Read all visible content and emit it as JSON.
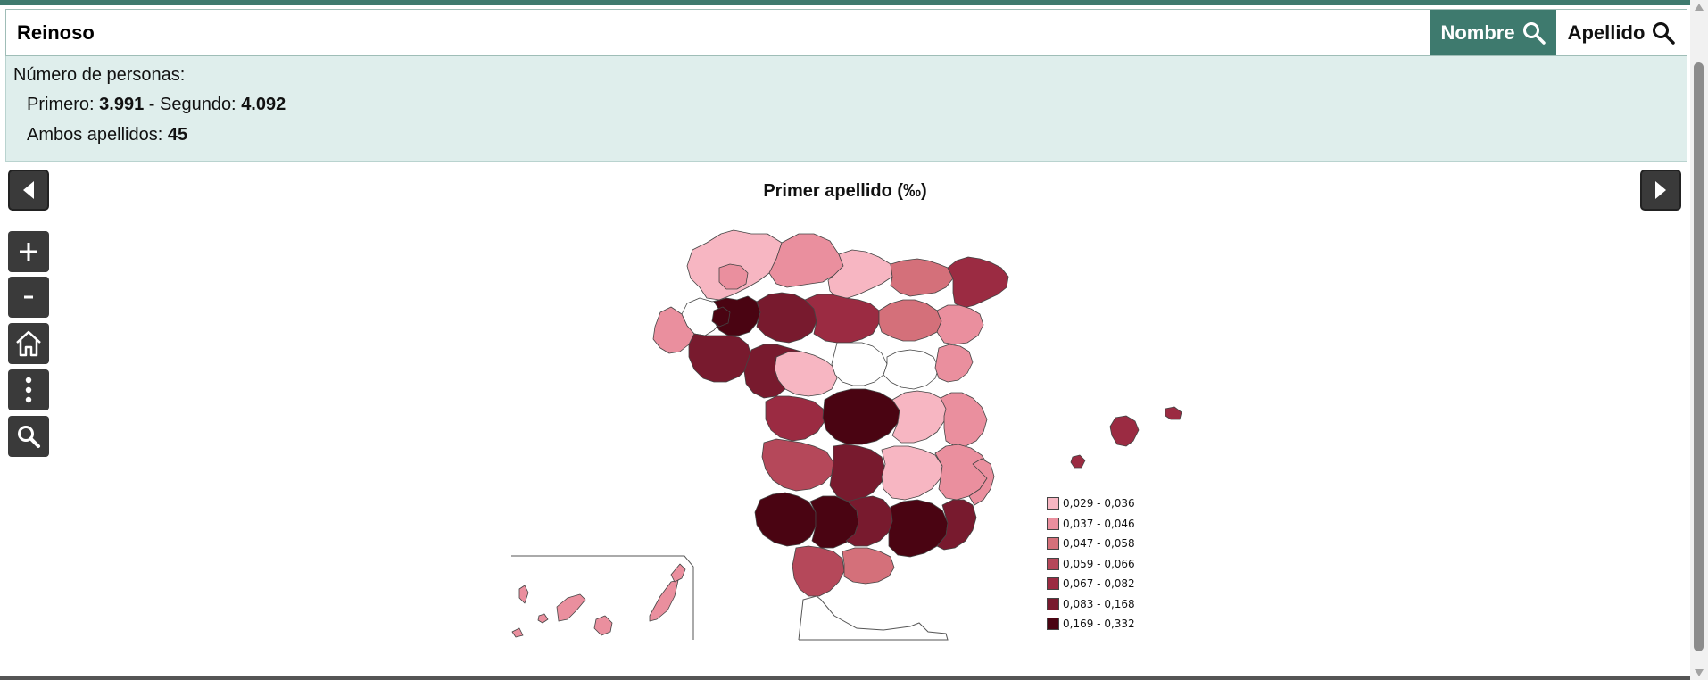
{
  "search": {
    "value": "Reinoso",
    "nombre_label": "Nombre",
    "apellido_label": "Apellido"
  },
  "info": {
    "title": "Número de personas:",
    "primero_label": "Primero:",
    "primero_value": "3.991",
    "segundo_label": "- Segundo:",
    "segundo_value": "4.092",
    "ambos_label": "Ambos apellidos:",
    "ambos_value": "45"
  },
  "map": {
    "title": "Primer apellido (‰)",
    "tools": [
      "zoom-in",
      "zoom-out",
      "home",
      "more",
      "search"
    ],
    "zoom_in_symbol": "+",
    "zoom_out_symbol": "-"
  },
  "legend": [
    {
      "label": "0,029 - 0,036",
      "color": "#f7b6c2"
    },
    {
      "label": "0,037 - 0,046",
      "color": "#ea8f9e"
    },
    {
      "label": "0,047 - 0,058",
      "color": "#d4707a"
    },
    {
      "label": "0,059 - 0,066",
      "color": "#b5485a"
    },
    {
      "label": "0,067 - 0,082",
      "color": "#9b2b42"
    },
    {
      "label": "0,083 - 0,168",
      "color": "#781a2e"
    },
    {
      "label": "0,169 - 0,332",
      "color": "#4a0412"
    }
  ],
  "colors": {
    "accent": "#3e7a6e",
    "panel_bg": "#dfeeec"
  }
}
